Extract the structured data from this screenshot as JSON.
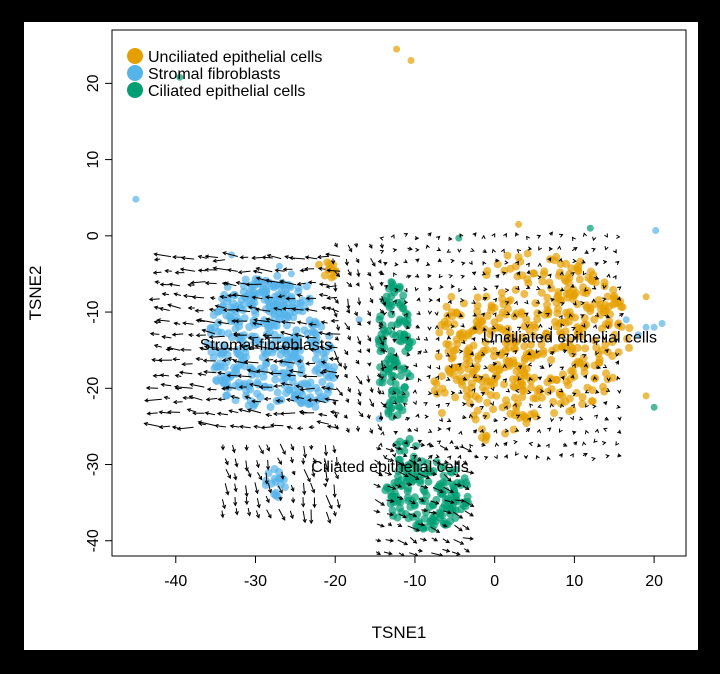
{
  "chart_data": {
    "type": "scatter",
    "title": "",
    "xlabel": "TSNE1",
    "ylabel": "TSNE2",
    "xlim": [
      -48,
      24
    ],
    "ylim": [
      -42,
      27
    ],
    "xticks": [
      -40,
      -30,
      -20,
      -10,
      0,
      10,
      20
    ],
    "yticks": [
      -40,
      -30,
      -20,
      -10,
      0,
      10,
      20
    ],
    "x_tick_labels": [
      "-40",
      "-30",
      "-20",
      "-10",
      "0",
      "10",
      "20"
    ],
    "y_tick_labels": [
      "-40",
      "-30",
      "-20",
      "-10",
      "0",
      "10",
      "20"
    ],
    "grid": false,
    "legend_position": "top-left",
    "overlay": "velocity arrows (embedding streams)",
    "series": [
      {
        "name": "Unciliated epithelial cells",
        "color": "#E69F00",
        "cluster_label": "Unciliated epithelial cells",
        "label_pos": [
          -1.5,
          -14
        ],
        "clusters": [
          {
            "cx": 5,
            "cy": -13,
            "rx": 12,
            "ry": 11,
            "n": 380
          },
          {
            "cx": -1,
            "cy": -19,
            "rx": 7,
            "ry": 8,
            "n": 90
          },
          {
            "cx": -21,
            "cy": -4.5,
            "rx": 1.3,
            "ry": 1.2,
            "n": 12
          }
        ],
        "outliers": [
          [
            -12.3,
            24.5
          ],
          [
            -10.5,
            23
          ],
          [
            3,
            1.5
          ],
          [
            19,
            -8
          ],
          [
            19,
            -21
          ]
        ]
      },
      {
        "name": "Stromal fibroblasts",
        "color": "#56B4E9",
        "cluster_label": "Stromal fibroblasts",
        "label_pos": [
          -37,
          -15
        ],
        "clusters": [
          {
            "cx": -30,
            "cy": -14,
            "rx": 6,
            "ry": 9,
            "n": 260
          },
          {
            "cx": -23,
            "cy": -17,
            "rx": 3,
            "ry": 6,
            "n": 90
          },
          {
            "cx": -27,
            "cy": -8,
            "rx": 4,
            "ry": 3,
            "n": 60
          },
          {
            "cx": -27.5,
            "cy": -32.5,
            "rx": 1.3,
            "ry": 2,
            "n": 18
          }
        ],
        "outliers": [
          [
            -45,
            4.8
          ],
          [
            -27,
            -4
          ],
          [
            -25.5,
            -5
          ],
          [
            -17,
            -11
          ],
          [
            -14.5,
            -24
          ],
          [
            16.5,
            -11
          ],
          [
            18,
            -13
          ],
          [
            19,
            -12
          ],
          [
            20,
            -12
          ],
          [
            21,
            -11.5
          ],
          [
            20.2,
            0.7
          ],
          [
            -33,
            -2.5
          ]
        ]
      },
      {
        "name": "Ciliated epithelial cells",
        "color": "#009E73",
        "cluster_label": "Ciliated epithelial cells",
        "label_pos": [
          -23,
          -31
        ],
        "clusters": [
          {
            "cx": -12.5,
            "cy": -15,
            "rx": 2.2,
            "ry": 9,
            "n": 120
          },
          {
            "cx": -8.5,
            "cy": -34,
            "rx": 5.5,
            "ry": 4.5,
            "n": 150
          },
          {
            "cx": -11,
            "cy": -29.5,
            "rx": 2,
            "ry": 3,
            "n": 25
          }
        ],
        "outliers": [
          [
            -39.5,
            20.8
          ],
          [
            -4.5,
            -0.3
          ],
          [
            12,
            1
          ],
          [
            20,
            -22.5
          ],
          [
            -13,
            -6
          ]
        ]
      }
    ],
    "velocity_fields": [
      {
        "x_range": [
          -42,
          -19
        ],
        "y_range": [
          -25,
          -2
        ],
        "dx": -1.2,
        "dy": 0.1
      },
      {
        "x_range": [
          -34,
          -19
        ],
        "y_range": [
          -36,
          -26
        ],
        "dx": 0.25,
        "dy": -0.9
      },
      {
        "x_range": [
          -20,
          -14
        ],
        "y_range": [
          -25,
          -1
        ],
        "dx": 0.3,
        "dy": -0.6
      },
      {
        "x_range": [
          -14,
          16
        ],
        "y_range": [
          -29,
          0
        ],
        "dx": 0.15,
        "dy": 0.05
      },
      {
        "x_range": [
          -15,
          -3
        ],
        "y_range": [
          -43,
          -26
        ],
        "dx": 0.8,
        "dy": -0.35
      }
    ]
  }
}
